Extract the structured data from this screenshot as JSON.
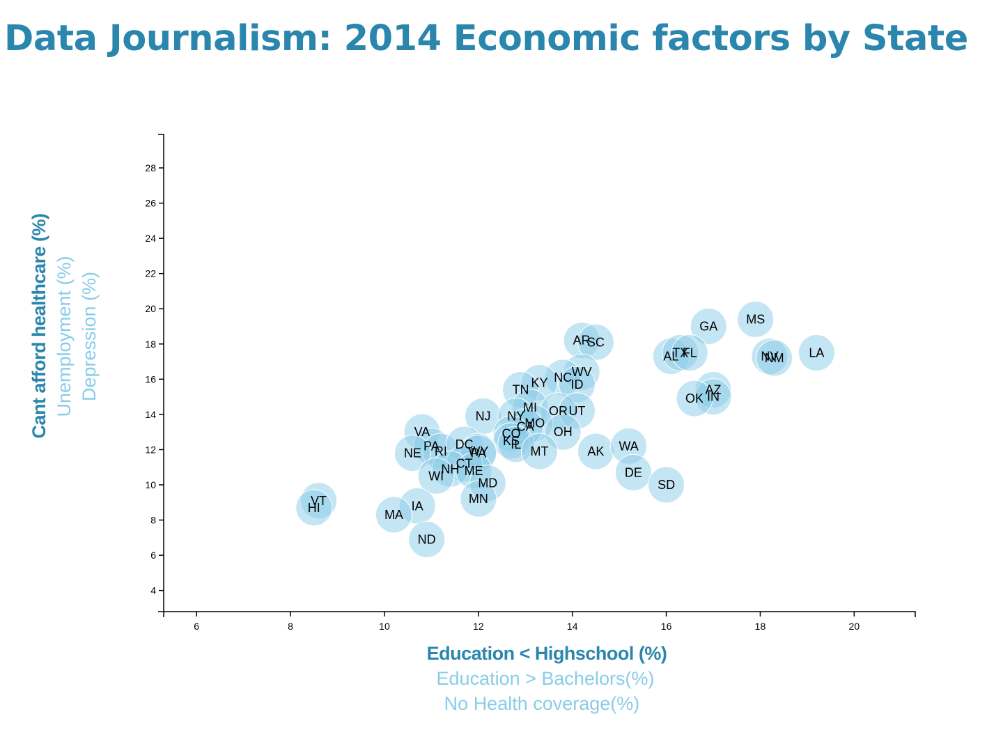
{
  "page": {
    "title": "Data Journalism: 2014 Economic factors by State"
  },
  "colors": {
    "title": "#2a86ad",
    "active_label": "#2a86ad",
    "inactive_label": "#89cce8",
    "circle_fill": "#89cce8"
  },
  "chart_data": {
    "type": "scatter",
    "title": "Data Journalism: 2014 Economic factors by State",
    "x_labels": [
      {
        "text": "Education < Highschool (%)",
        "active": true
      },
      {
        "text": "Education > Bachelors(%)",
        "active": false
      },
      {
        "text": "No Health coverage(%)",
        "active": false
      }
    ],
    "y_labels": [
      {
        "text": "Cant afford healthcare (%)",
        "active": true
      },
      {
        "text": "Unemployment (%)",
        "active": false
      },
      {
        "text": "Depression (%)",
        "active": false
      }
    ],
    "xlim": [
      5.3,
      21.3
    ],
    "ylim": [
      2.8,
      29.9
    ],
    "x_ticks": [
      6,
      8,
      10,
      12,
      14,
      16,
      18,
      20
    ],
    "y_ticks": [
      4,
      6,
      8,
      10,
      12,
      14,
      16,
      18,
      20,
      22,
      24,
      26,
      28
    ],
    "grid": false,
    "points": [
      {
        "label": "MS",
        "x": 17.9,
        "y": 19.4
      },
      {
        "label": "GA",
        "x": 16.9,
        "y": 19.0
      },
      {
        "label": "LA",
        "x": 19.2,
        "y": 17.5
      },
      {
        "label": "NV",
        "x": 18.2,
        "y": 17.3
      },
      {
        "label": "NM",
        "x": 18.3,
        "y": 17.2
      },
      {
        "label": "AR",
        "x": 14.2,
        "y": 18.2
      },
      {
        "label": "SC",
        "x": 14.5,
        "y": 18.1
      },
      {
        "label": "AL",
        "x": 16.1,
        "y": 17.3
      },
      {
        "label": "TX",
        "x": 16.3,
        "y": 17.5
      },
      {
        "label": "FL",
        "x": 16.5,
        "y": 17.5
      },
      {
        "label": "WV",
        "x": 14.2,
        "y": 16.4
      },
      {
        "label": "NC",
        "x": 13.8,
        "y": 16.1
      },
      {
        "label": "ID",
        "x": 14.1,
        "y": 15.7
      },
      {
        "label": "KY",
        "x": 13.3,
        "y": 15.8
      },
      {
        "label": "TN",
        "x": 12.9,
        "y": 15.4
      },
      {
        "label": "AZ",
        "x": 17.0,
        "y": 15.4
      },
      {
        "label": "IN",
        "x": 17.0,
        "y": 15.0
      },
      {
        "label": "OK",
        "x": 16.6,
        "y": 14.9
      },
      {
        "label": "NJ",
        "x": 12.1,
        "y": 13.9
      },
      {
        "label": "MI",
        "x": 13.1,
        "y": 14.4
      },
      {
        "label": "OR",
        "x": 13.7,
        "y": 14.2
      },
      {
        "label": "UT",
        "x": 14.1,
        "y": 14.2
      },
      {
        "label": "NY",
        "x": 12.8,
        "y": 13.9
      },
      {
        "label": "MO",
        "x": 13.2,
        "y": 13.5
      },
      {
        "label": "CA",
        "x": 13.0,
        "y": 13.3
      },
      {
        "label": "OH",
        "x": 13.8,
        "y": 13.0
      },
      {
        "label": "CO",
        "x": 12.7,
        "y": 12.9
      },
      {
        "label": "KS",
        "x": 12.7,
        "y": 12.5
      },
      {
        "label": "IL",
        "x": 12.8,
        "y": 12.3
      },
      {
        "label": "VA",
        "x": 10.8,
        "y": 13.0
      },
      {
        "label": "PA",
        "x": 11.0,
        "y": 12.2
      },
      {
        "label": "RI",
        "x": 11.2,
        "y": 11.9
      },
      {
        "label": "NE",
        "x": 10.6,
        "y": 11.8
      },
      {
        "label": "DC",
        "x": 11.7,
        "y": 12.3
      },
      {
        "label": "WY",
        "x": 12.0,
        "y": 11.9
      },
      {
        "label": "PA",
        "x": 12.0,
        "y": 11.8
      },
      {
        "label": "MT",
        "x": 13.3,
        "y": 11.9
      },
      {
        "label": "AK",
        "x": 14.5,
        "y": 11.9
      },
      {
        "label": "WA",
        "x": 15.2,
        "y": 12.2
      },
      {
        "label": "DE",
        "x": 15.3,
        "y": 10.7
      },
      {
        "label": "CT",
        "x": 11.7,
        "y": 11.2
      },
      {
        "label": "NH",
        "x": 11.4,
        "y": 10.9
      },
      {
        "label": "ME",
        "x": 11.9,
        "y": 10.8
      },
      {
        "label": "WI",
        "x": 11.1,
        "y": 10.5
      },
      {
        "label": "MD",
        "x": 12.2,
        "y": 10.1
      },
      {
        "label": "SD",
        "x": 16.0,
        "y": 10.0
      },
      {
        "label": "MN",
        "x": 12.0,
        "y": 9.2
      },
      {
        "label": "VT",
        "x": 8.6,
        "y": 9.1
      },
      {
        "label": "HI",
        "x": 8.5,
        "y": 8.7
      },
      {
        "label": "IA",
        "x": 10.7,
        "y": 8.8
      },
      {
        "label": "MA",
        "x": 10.2,
        "y": 8.3
      },
      {
        "label": "ND",
        "x": 10.9,
        "y": 6.9
      }
    ]
  }
}
